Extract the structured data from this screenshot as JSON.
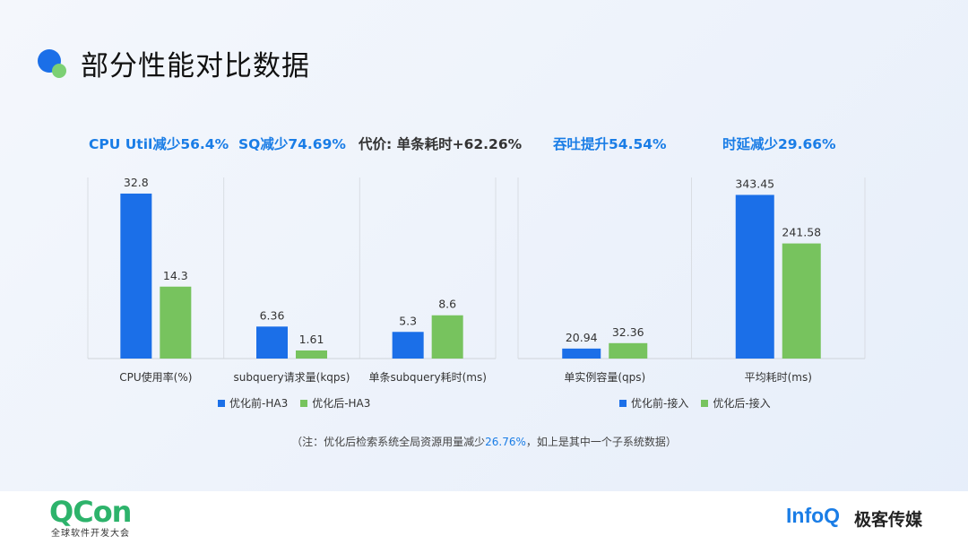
{
  "page": {
    "title": "部分性能对比数据",
    "note_prefix": "（注：优化后检索系统全局资源用量减少",
    "note_highlight": "26.76%",
    "note_suffix": "，如上是其中一个子系统数据）"
  },
  "headlines": [
    "CPU Util减少56.4%",
    "SQ减少74.69%",
    "代价: 单条耗时+62.26%",
    "吞吐提升54.54%",
    "时延减少29.66%"
  ],
  "legends": {
    "left": [
      "优化前-HA3",
      "优化后-HA3"
    ],
    "right": [
      "优化前-接入",
      "优化后-接入"
    ]
  },
  "colors": {
    "before": "#1b6fe8",
    "after": "#77c35e",
    "accent": "#1a7de6",
    "logo_green": "#2db36b"
  },
  "footer": {
    "qcon": "QCon",
    "qcon_sub": "全球软件开发大会",
    "infoq": "InfoQ",
    "geek": "极客传媒"
  },
  "chart_data": [
    {
      "type": "bar",
      "categories": [
        "CPU使用率(%)",
        "subquery请求量(kqps)",
        "单条subquery耗时(ms)"
      ],
      "series": [
        {
          "name": "优化前-HA3",
          "values": [
            32.8,
            6.36,
            5.3
          ]
        },
        {
          "name": "优化后-HA3",
          "values": [
            14.3,
            1.61,
            8.6
          ]
        }
      ],
      "value_labels": [
        [
          "32.8",
          "6.36",
          "5.3"
        ],
        [
          "14.3",
          "1.61",
          "8.6"
        ]
      ],
      "ylim": [
        0,
        36
      ]
    },
    {
      "type": "bar",
      "categories": [
        "单实例容量(qps)",
        "平均耗时(ms)"
      ],
      "series": [
        {
          "name": "优化前-接入",
          "values": [
            20.94,
            343.45
          ]
        },
        {
          "name": "优化后-接入",
          "values": [
            32.36,
            241.58
          ]
        }
      ],
      "value_labels": [
        [
          "20.94",
          "343.45"
        ],
        [
          "32.36",
          "241.58"
        ]
      ],
      "ylim": [
        0,
        380
      ]
    }
  ]
}
